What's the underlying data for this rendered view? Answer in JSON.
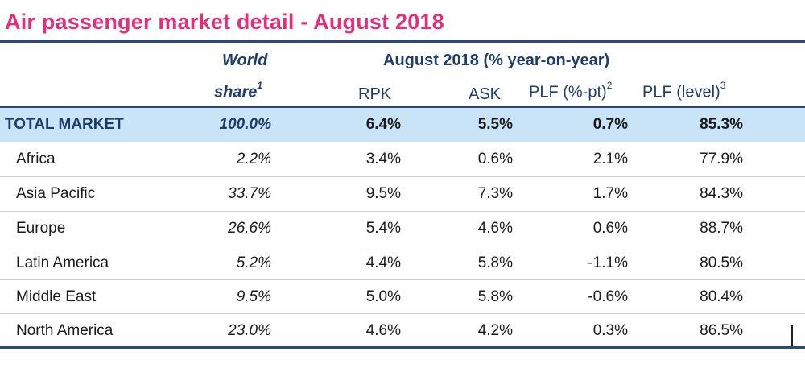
{
  "title": "Air passenger market detail - August 2018",
  "header": {
    "world": "World",
    "share": "share",
    "share_sup": "1",
    "group": "August 2018 (% year-on-year)",
    "rpk": "RPK",
    "ask": "ASK",
    "plf_pt": "PLF (%-pt)",
    "plf_pt_sup": "2",
    "plf_level": "PLF (level)",
    "plf_level_sup": "3"
  },
  "rows": [
    {
      "name": "TOTAL MARKET",
      "share": "100.0%",
      "rpk": "6.4%",
      "ask": "5.5%",
      "plf_pt": "0.7%",
      "plf_level": "85.3%"
    },
    {
      "name": "Africa",
      "share": "2.2%",
      "rpk": "3.4%",
      "ask": "0.6%",
      "plf_pt": "2.1%",
      "plf_level": "77.9%"
    },
    {
      "name": "Asia Pacific",
      "share": "33.7%",
      "rpk": "9.5%",
      "ask": "7.3%",
      "plf_pt": "1.7%",
      "plf_level": "84.3%"
    },
    {
      "name": "Europe",
      "share": "26.6%",
      "rpk": "5.4%",
      "ask": "4.6%",
      "plf_pt": "0.6%",
      "plf_level": "88.7%"
    },
    {
      "name": "Latin America",
      "share": "5.2%",
      "rpk": "4.4%",
      "ask": "5.8%",
      "plf_pt": "-1.1%",
      "plf_level": "80.5%"
    },
    {
      "name": "Middle East",
      "share": "9.5%",
      "rpk": "5.0%",
      "ask": "5.8%",
      "plf_pt": "-0.6%",
      "plf_level": "80.4%"
    },
    {
      "name": "North America",
      "share": "23.0%",
      "rpk": "4.6%",
      "ask": "4.2%",
      "plf_pt": "0.3%",
      "plf_level": "86.5%"
    }
  ],
  "colors": {
    "title": "#e0307a",
    "header": "#1f3d6b",
    "rule": "#2a4a78",
    "total_band": "#c9e4f6"
  }
}
